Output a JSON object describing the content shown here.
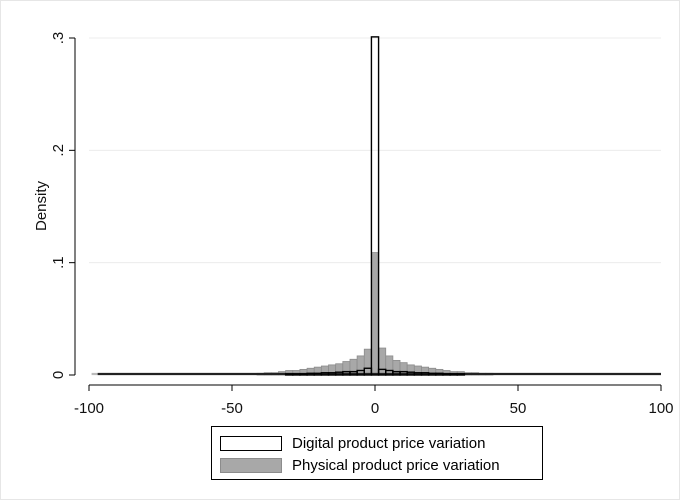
{
  "chart_data": {
    "type": "bar",
    "subtype": "overlaid-histogram",
    "title": "",
    "xlabel": "",
    "ylabel": "Density",
    "xlim": [
      -100,
      100
    ],
    "ylim": [
      0,
      0.3
    ],
    "x_ticks": [
      -100,
      -50,
      0,
      50,
      100
    ],
    "x_tick_labels": [
      "-100",
      "-50",
      "0",
      "50",
      "100"
    ],
    "y_ticks": [
      0,
      0.1,
      0.2,
      0.3
    ],
    "y_tick_labels": [
      "0",
      ".1",
      ".2",
      ".3"
    ],
    "grid": "horizontal",
    "legend_position": "bottom",
    "bin_width": 2.5,
    "series": [
      {
        "name": "Digital product price variation",
        "style": "outline",
        "fill": "#ffffff",
        "stroke": "#000000",
        "bins": [
          {
            "x": -30.0,
            "y": 0.001
          },
          {
            "x": -27.5,
            "y": 0.001
          },
          {
            "x": -25.0,
            "y": 0.001
          },
          {
            "x": -22.5,
            "y": 0.0015
          },
          {
            "x": -20.0,
            "y": 0.0015
          },
          {
            "x": -17.5,
            "y": 0.002
          },
          {
            "x": -15.0,
            "y": 0.002
          },
          {
            "x": -12.5,
            "y": 0.0025
          },
          {
            "x": -10.0,
            "y": 0.003
          },
          {
            "x": -7.5,
            "y": 0.003
          },
          {
            "x": -5.0,
            "y": 0.004
          },
          {
            "x": -2.5,
            "y": 0.006
          },
          {
            "x": 0.0,
            "y": 0.301
          },
          {
            "x": 2.5,
            "y": 0.005
          },
          {
            "x": 5.0,
            "y": 0.004
          },
          {
            "x": 7.5,
            "y": 0.003
          },
          {
            "x": 10.0,
            "y": 0.003
          },
          {
            "x": 12.5,
            "y": 0.0025
          },
          {
            "x": 15.0,
            "y": 0.002
          },
          {
            "x": 17.5,
            "y": 0.002
          },
          {
            "x": 20.0,
            "y": 0.0015
          },
          {
            "x": 22.5,
            "y": 0.0015
          },
          {
            "x": 25.0,
            "y": 0.001
          },
          {
            "x": 27.5,
            "y": 0.001
          },
          {
            "x": 30.0,
            "y": 0.001
          }
        ]
      },
      {
        "name": "Physical product price variation",
        "style": "filled",
        "fill": "#a8a8a8",
        "stroke": "#8c8c8c",
        "bins": [
          {
            "x": -40.0,
            "y": 0.0015
          },
          {
            "x": -37.5,
            "y": 0.002
          },
          {
            "x": -35.0,
            "y": 0.002
          },
          {
            "x": -32.5,
            "y": 0.003
          },
          {
            "x": -30.0,
            "y": 0.004
          },
          {
            "x": -27.5,
            "y": 0.004
          },
          {
            "x": -25.0,
            "y": 0.005
          },
          {
            "x": -22.5,
            "y": 0.006
          },
          {
            "x": -20.0,
            "y": 0.007
          },
          {
            "x": -17.5,
            "y": 0.008
          },
          {
            "x": -15.0,
            "y": 0.009
          },
          {
            "x": -12.5,
            "y": 0.01
          },
          {
            "x": -10.0,
            "y": 0.012
          },
          {
            "x": -7.5,
            "y": 0.014
          },
          {
            "x": -5.0,
            "y": 0.017
          },
          {
            "x": -2.5,
            "y": 0.023
          },
          {
            "x": 0.0,
            "y": 0.109
          },
          {
            "x": 2.5,
            "y": 0.024
          },
          {
            "x": 5.0,
            "y": 0.017
          },
          {
            "x": 7.5,
            "y": 0.013
          },
          {
            "x": 10.0,
            "y": 0.011
          },
          {
            "x": 12.5,
            "y": 0.009
          },
          {
            "x": 15.0,
            "y": 0.008
          },
          {
            "x": 17.5,
            "y": 0.007
          },
          {
            "x": 20.0,
            "y": 0.006
          },
          {
            "x": 22.5,
            "y": 0.005
          },
          {
            "x": 25.0,
            "y": 0.004
          },
          {
            "x": 27.5,
            "y": 0.003
          },
          {
            "x": 30.0,
            "y": 0.003
          },
          {
            "x": 32.5,
            "y": 0.002
          },
          {
            "x": 35.0,
            "y": 0.002
          },
          {
            "x": 37.5,
            "y": 0.0015
          },
          {
            "x": 40.0,
            "y": 0.0015
          }
        ]
      }
    ],
    "baseline_range": [
      -97,
      100
    ]
  }
}
